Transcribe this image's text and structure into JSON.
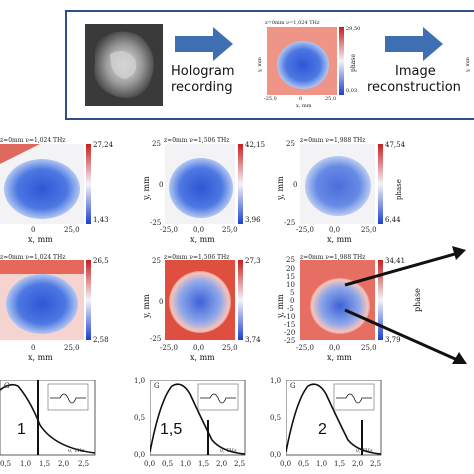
{
  "steps": {
    "recording_line1": "Hologram",
    "recording_line2": "recording",
    "reconstruction_line1": "Image",
    "reconstruction_line2": "reconstruction"
  },
  "top_panel": {
    "title": "z=0mm  ν=1,024 THz",
    "cb_max": "29,50",
    "cb_min": "0,03",
    "phase_label": "phase",
    "xlabel": "x, mm",
    "ylabel": "y, mm",
    "xtick_min": "-25,0",
    "xtick_mid": "0",
    "xtick_max": "25,0"
  },
  "row1": [
    {
      "title": "z=0mm  ν=1,024 THz",
      "cb_max": "27,24",
      "cb_min": "1,43"
    },
    {
      "title": "z=0mm  ν=1,506 THz",
      "cb_max": "42,15",
      "cb_min": "3,96"
    },
    {
      "title": "z=0mm  ν=1,988 THz",
      "cb_max": "47,54",
      "cb_min": "6,44"
    }
  ],
  "row2": [
    {
      "title": "z=0mm  ν=1,024 THz",
      "cb_max": "26,5",
      "cb_min": "2,58"
    },
    {
      "title": "z=0mm  ν=1,506 THz",
      "cb_max": "27,3",
      "cb_min": "3,74"
    },
    {
      "title": "z=0mm  ν=1,988 THz",
      "cb_max": "34,41",
      "cb_min": "3,79"
    }
  ],
  "axes": {
    "xlabel": "x, mm",
    "ylabel": "y, mm",
    "phase": "phase",
    "xtick_min": "-25,0",
    "xtick_mid": "0,0",
    "xtick_max": "25,0",
    "ytick_25": "25",
    "ytick_20": "20",
    "ytick_15": "15",
    "ytick_10": "10",
    "ytick_5": "5",
    "ytick_0": "0",
    "ytick_m5": "-5",
    "ytick_m10": "-10",
    "ytick_m15": "-15",
    "ytick_m20": "-20",
    "ytick_m25": "-25",
    "xmin_cut": "0",
    "xmax_cut": "25,0"
  },
  "spectra": [
    {
      "marker": "1",
      "g": "G"
    },
    {
      "marker": "1,5",
      "g": "G"
    },
    {
      "marker": "2",
      "g": "G"
    }
  ],
  "spectra_axis": {
    "y_top": "1,0",
    "y_mid": "0,5",
    "y_bot": "0,0",
    "x_ticks": [
      "0,0",
      "0,5",
      "1,0",
      "1,5",
      "2,0",
      "2,5"
    ],
    "x_ticks_cut": [
      "0,5",
      "1,0",
      "1,5",
      "2,0",
      "2,5"
    ],
    "unit": "ν, THz"
  },
  "colors": {
    "accent": "#2d4f86",
    "red": "#d8412f",
    "blue": "#2f5bd0"
  }
}
